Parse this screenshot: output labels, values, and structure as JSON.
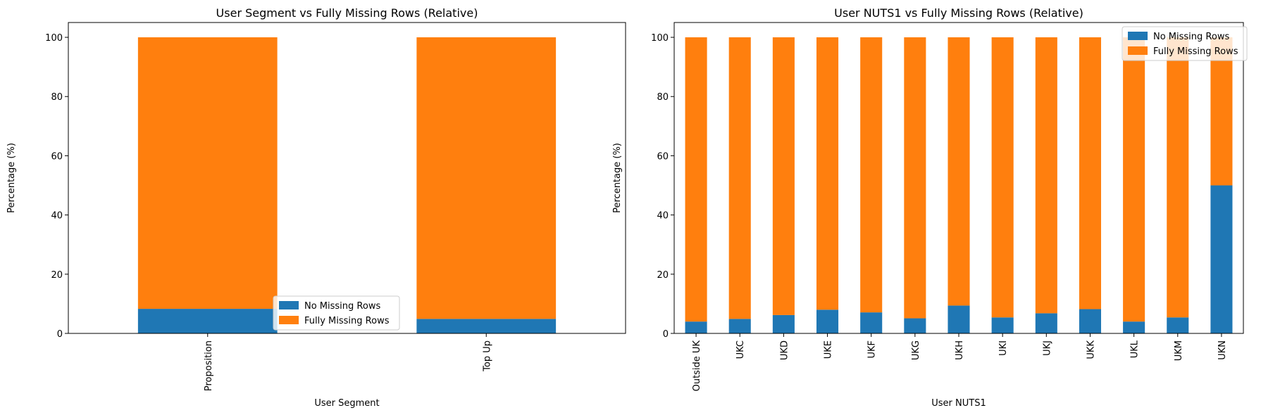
{
  "colors": {
    "no_missing": "#1f77b4",
    "fully_missing": "#ff7f0e"
  },
  "chart_data": [
    {
      "type": "bar",
      "stacked": true,
      "title": "User Segment vs Fully Missing Rows (Relative)",
      "xlabel": "User Segment",
      "ylabel": "Percentage (%)",
      "ylim": [
        0,
        105
      ],
      "yticks": [
        0,
        20,
        40,
        60,
        80,
        100
      ],
      "categories": [
        "Proposition",
        "Top Up"
      ],
      "series": [
        {
          "name": "No Missing Rows",
          "values": [
            8.3,
            4.9
          ]
        },
        {
          "name": "Fully Missing Rows",
          "values": [
            91.7,
            95.1
          ]
        }
      ],
      "legend": "lower center",
      "grid": false
    },
    {
      "type": "bar",
      "stacked": true,
      "title": "User NUTS1 vs Fully Missing Rows (Relative)",
      "xlabel": "User NUTS1",
      "ylabel": "Percentage (%)",
      "ylim": [
        0,
        105
      ],
      "yticks": [
        0,
        20,
        40,
        60,
        80,
        100
      ],
      "categories": [
        "Outside UK",
        "UKC",
        "UKD",
        "UKE",
        "UKF",
        "UKG",
        "UKH",
        "UKI",
        "UKJ",
        "UKK",
        "UKL",
        "UKM",
        "UKN"
      ],
      "series": [
        {
          "name": "No Missing Rows",
          "values": [
            4.0,
            4.9,
            6.2,
            8.0,
            7.1,
            5.1,
            9.4,
            5.4,
            6.8,
            8.2,
            4.0,
            5.4,
            50.0
          ]
        },
        {
          "name": "Fully Missing Rows",
          "values": [
            96.0,
            95.1,
            93.8,
            92.0,
            92.9,
            94.9,
            90.6,
            94.6,
            93.2,
            91.8,
            96.0,
            94.6,
            50.0
          ]
        }
      ],
      "legend": "upper right",
      "grid": false
    }
  ]
}
